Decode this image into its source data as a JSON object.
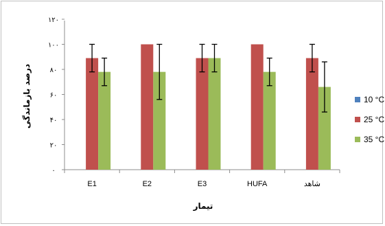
{
  "chart_data": {
    "type": "bar",
    "categories": [
      "E1",
      "E2",
      "E3",
      "HUFA",
      "شاهد"
    ],
    "xlabel": "تیمار",
    "ylabel": "درصد بازماندگی",
    "ylim": [
      0,
      120
    ],
    "yticks": [
      0,
      20,
      40,
      60,
      80,
      100,
      120
    ],
    "ytick_labels": [
      "۰",
      "۲۰",
      "۴۰",
      "۶۰",
      "۸۰",
      "۱۰۰",
      "۱۲۰"
    ],
    "grid": false,
    "legend_position": "right",
    "series": [
      {
        "name": "10 °C",
        "color": "#4f81bd",
        "values": [
          0,
          0,
          0,
          0,
          0
        ],
        "errors": [
          0,
          0,
          0,
          0,
          0
        ]
      },
      {
        "name": "25 °C",
        "color": "#c0504d",
        "values": [
          89,
          100,
          89,
          100,
          89
        ],
        "errors": [
          11,
          0,
          11,
          0,
          11
        ]
      },
      {
        "name": "35 °C",
        "color": "#9bbb59",
        "values": [
          78,
          78,
          89,
          78,
          66
        ],
        "errors": [
          11,
          22,
          11,
          11,
          20
        ]
      }
    ]
  }
}
